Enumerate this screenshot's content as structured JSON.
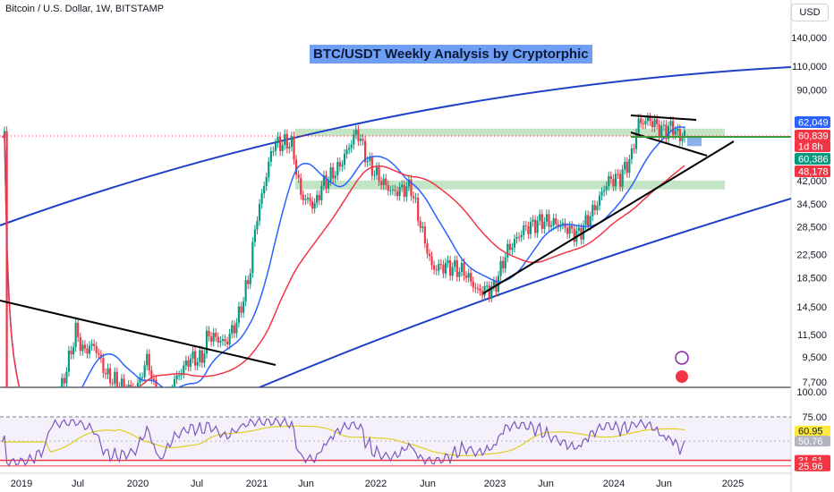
{
  "header": {
    "symbol": "Bitcoin / U.S. Dollar, 1W, BITSTAMP",
    "currency": "USD"
  },
  "chart_data": {
    "type": "candlestick",
    "title": "BTC/USDT Weekly Analysis by Cryptorphic",
    "symbol": "Bitcoin / U.S. Dollar",
    "interval": "1W",
    "exchange": "BITSTAMP",
    "y_scale": "log",
    "y_ticks": [
      7700,
      9500,
      11500,
      14500,
      18500,
      22500,
      28500,
      34500,
      42000,
      60386,
      90000,
      110000,
      140000
    ],
    "y_tick_labels": [
      "7,700",
      "9,500",
      "11,500",
      "14,500",
      "18,500",
      "22,500",
      "28,500",
      "34,500",
      "42,000",
      "60,386",
      "90,000",
      "110,000",
      "140,000"
    ],
    "x_tick_labels": [
      "2019",
      "Jul",
      "2020",
      "Jul",
      "2021",
      "Jun",
      "2022",
      "Jun",
      "2023",
      "Jun",
      "2024",
      "Jun",
      "2025"
    ],
    "price_tags": [
      {
        "label": "62,049",
        "color": "#2962ff"
      },
      {
        "label": "60,839",
        "color": "#f23645"
      },
      {
        "label": "1d 8h",
        "color": "#f23645"
      },
      {
        "label": "60,386",
        "color": "#089981"
      },
      {
        "label": "48,178",
        "color": "#f23645"
      }
    ],
    "series": [
      {
        "name": "MA fast",
        "color": "#2962ff"
      },
      {
        "name": "MA slow",
        "color": "#f23645"
      }
    ],
    "annotations": {
      "support_zones": [
        [
          61000,
          65000
        ],
        [
          39000,
          42000
        ]
      ],
      "ascending_trendline": true,
      "falling_trendline": true,
      "channel_lines": 2,
      "triangle_top": true
    },
    "rsi": {
      "levels": [
        75.0,
        31.61
      ],
      "y_tick_labels": [
        "100.00",
        "75.00",
        "25.96"
      ],
      "value_labels": [
        {
          "label": "60.95",
          "color": "#ffeb3b"
        },
        {
          "label": "50.76",
          "color": "#b2b5be"
        },
        {
          "label": "31.61",
          "color": "#f23645"
        },
        {
          "label": "25.96",
          "color": "#f23645"
        }
      ],
      "rsi_color": "#7e57c2",
      "signal_color": "#e0d020"
    }
  }
}
